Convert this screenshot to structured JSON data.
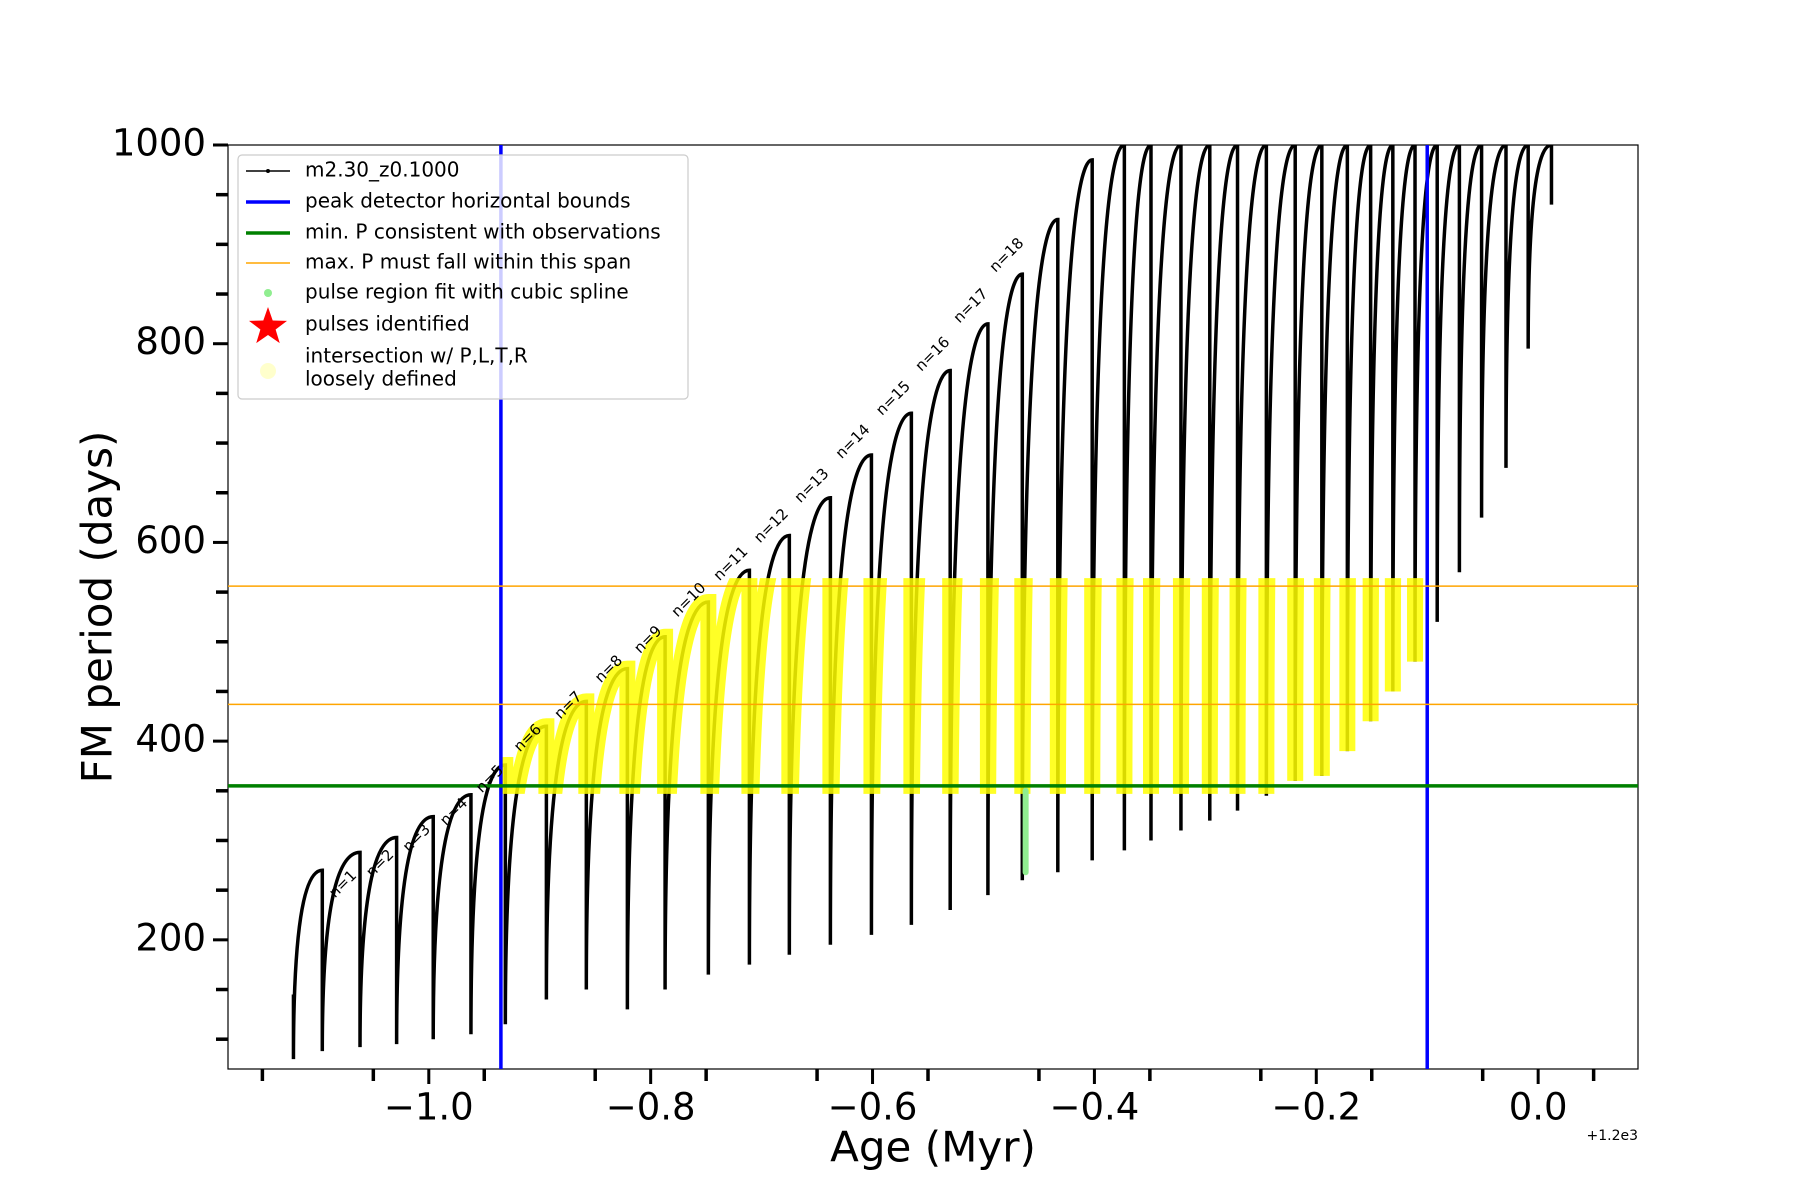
{
  "chart_data": {
    "type": "line",
    "xlabel": "Age (Myr)",
    "ylabel": "FM period (days)",
    "x_offset_label": "+1.2e3",
    "xlim": [
      -1.181,
      0.09
    ],
    "ylim": [
      70,
      1000
    ],
    "xticks": [
      {
        "value": -1.0,
        "label": "−1.0"
      },
      {
        "value": -0.8,
        "label": "−0.8"
      },
      {
        "value": -0.6,
        "label": "−0.6"
      },
      {
        "value": -0.4,
        "label": "−0.4"
      },
      {
        "value": -0.2,
        "label": "−0.2"
      },
      {
        "value": 0.0,
        "label": "0.0"
      }
    ],
    "xminor": [
      -1.15,
      -1.05,
      -0.95,
      -0.85,
      -0.75,
      -0.65,
      -0.55,
      -0.45,
      -0.35,
      -0.25,
      -0.15,
      -0.05,
      0.05
    ],
    "yticks": [
      200,
      400,
      600,
      800,
      1000
    ],
    "yminor": [
      100,
      150,
      250,
      300,
      350,
      450,
      500,
      550,
      650,
      700,
      750,
      850,
      900,
      950
    ],
    "series": [
      {
        "name": "m2.30_z0.1000",
        "color": "#000000",
        "x": [
          -1.122,
          -1.122,
          -1.096,
          -1.096,
          -1.062,
          -1.062,
          -1.029,
          -1.029,
          -0.996,
          -0.996,
          -0.962,
          -0.962,
          -0.931,
          -0.931,
          -0.894,
          -0.894,
          -0.858,
          -0.858,
          -0.821,
          -0.821,
          -0.787,
          -0.787,
          -0.748,
          -0.748,
          -0.711,
          -0.711,
          -0.675,
          -0.675,
          -0.638,
          -0.638,
          -0.601,
          -0.601,
          -0.565,
          -0.565,
          -0.53,
          -0.53,
          -0.496,
          -0.496,
          -0.465,
          -0.465,
          -0.433,
          -0.433,
          -0.402,
          -0.402,
          -0.373,
          -0.373,
          -0.349,
          -0.349,
          -0.322,
          -0.322,
          -0.296,
          -0.296,
          -0.271,
          -0.271,
          -0.245,
          -0.245,
          -0.219,
          -0.219,
          -0.195,
          -0.195,
          -0.172,
          -0.172,
          -0.151,
          -0.151,
          -0.131,
          -0.131,
          -0.111,
          -0.111,
          -0.091,
          -0.091,
          -0.071,
          -0.071,
          -0.051,
          -0.051,
          -0.029,
          -0.029,
          -0.009,
          -0.009,
          0.012,
          0.012
        ],
        "values": [
          145,
          80,
          270,
          88,
          288,
          92,
          303,
          95,
          324,
          100,
          346,
          105,
          376,
          115,
          415,
          140,
          440,
          150,
          473,
          130,
          505,
          150,
          540,
          165,
          572,
          175,
          607,
          185,
          645,
          195,
          688,
          205,
          730,
          215,
          773,
          230,
          820,
          245,
          870,
          260,
          925,
          268,
          985,
          280,
          1000,
          290,
          1000,
          300,
          1000,
          310,
          1000,
          320,
          1000,
          330,
          1000,
          345,
          1000,
          360,
          1000,
          365,
          1000,
          390,
          1000,
          420,
          1000,
          450,
          1000,
          480,
          1000,
          520,
          1000,
          570,
          1000,
          625,
          1000,
          675,
          1000,
          795,
          1000,
          940
        ]
      },
      {
        "name": "pulse region fit with cubic spline",
        "color": "#90ee90",
        "x": [
          -0.462,
          -0.462
        ],
        "values": [
          350,
          268
        ]
      }
    ],
    "bounds": {
      "name": "peak detector horizontal bounds",
      "color": "#0000ff",
      "values": [
        -0.935,
        -0.1
      ]
    },
    "min_period": {
      "name": "min. P consistent with observations",
      "color": "#008000",
      "value": 355
    },
    "max_period": {
      "name": "max. P must fall within this span",
      "color": "#ffa500",
      "values": [
        437,
        556
      ]
    },
    "pulses": {
      "name": "pulses identified",
      "color": "#ff0000"
    },
    "highlight": {
      "name": [
        "intersection w/ P,L,T,R",
        "loosely defined"
      ],
      "color": "#ffff00"
    },
    "annotations": [
      "n=1",
      "n=2",
      "n=3",
      "n=4",
      "n=5",
      "n=6",
      "n=7",
      "n=8",
      "n=9",
      "n=10",
      "n=11",
      "n=12",
      "n=13",
      "n=14",
      "n=15",
      "n=16",
      "n=17",
      "n=18"
    ]
  }
}
